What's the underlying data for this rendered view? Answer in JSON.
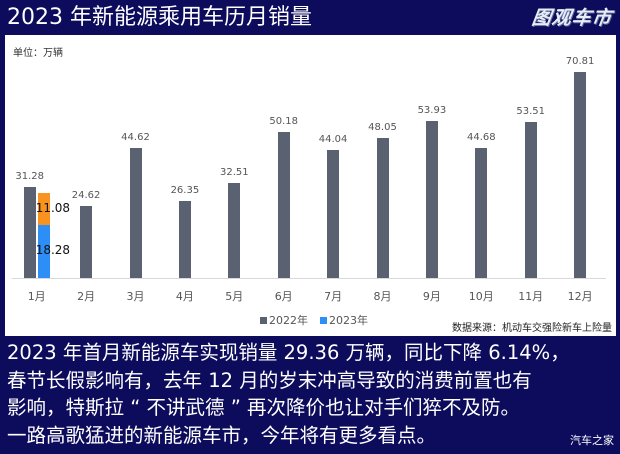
{
  "header": {
    "title": "2023 年新能源乘用车历月销量",
    "logo": "图观车市"
  },
  "chart_data": {
    "type": "bar",
    "title": "2023 年新能源乘用车历月销量",
    "unit_label": "单位：万辆",
    "xlabel": "",
    "ylabel": "万辆",
    "ylim": [
      0,
      72
    ],
    "grid": false,
    "legend_position": "bottom",
    "categories": [
      "1月",
      "2月",
      "3月",
      "4月",
      "5月",
      "6月",
      "7月",
      "8月",
      "9月",
      "10月",
      "11月",
      "12月"
    ],
    "series": [
      {
        "name": "2022年",
        "color": "#5a6170",
        "values": [
          31.28,
          24.62,
          44.62,
          26.35,
          32.51,
          50.18,
          44.04,
          48.05,
          53.93,
          44.68,
          53.51,
          70.81
        ]
      },
      {
        "name": "2023年",
        "color": "#2d8ef5",
        "values": [
          29.36,
          null,
          null,
          null,
          null,
          null,
          null,
          null,
          null,
          null,
          null,
          null
        ],
        "stacked_segments": [
          {
            "label": "18.28",
            "value": 18.28,
            "color": "#2d8ef5"
          },
          {
            "label": "11.08",
            "value": 11.08,
            "color": "#f7931e"
          }
        ]
      }
    ],
    "source": "数据来源：机动车交强险新车上险量"
  },
  "caption": {
    "lines": [
      "2023 年首月新能源车实现销量 29.36 万辆，同比下降 6.14%，",
      "春节长假影响有，去年 12 月的岁末冲高导致的消费前置也有",
      "影响，特斯拉 “ 不讲武德 ” 再次降价也让对手们猝不及防。",
      "一路高歌猛进的新能源车市，今年将有更多看点。"
    ]
  },
  "watermark": "汽车之家",
  "colors": {
    "background": "#0d0b5c",
    "bar_2022": "#5a6170",
    "bar_2023_blue": "#2d8ef5",
    "bar_2023_orange": "#f7931e"
  }
}
